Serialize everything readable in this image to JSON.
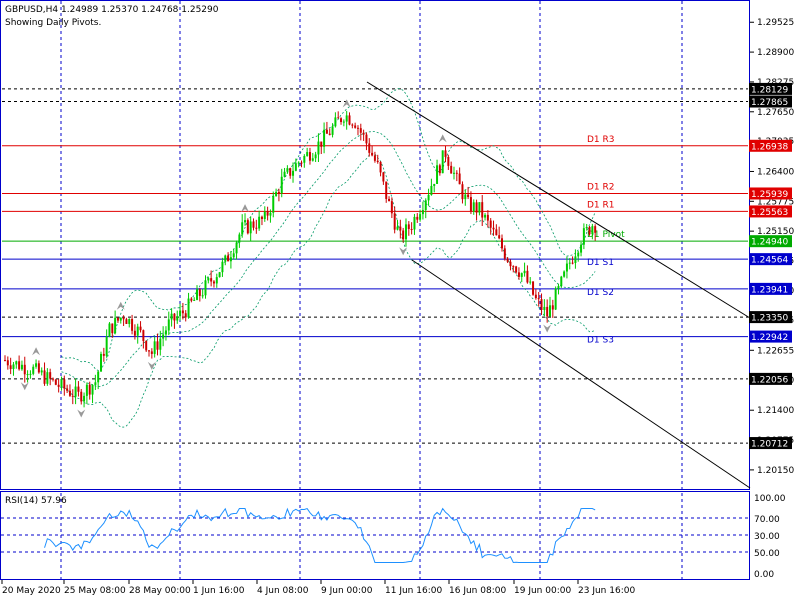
{
  "header": {
    "symbol_line": "GBPUSD,H4  1.24989 1.25370 1.24768 1.25290",
    "subtitle": "Showing Daily Pivots."
  },
  "rsi": {
    "label": "RSI(14) 57.96",
    "ticks": [
      "100.00",
      "70.00",
      "50.00",
      "30.00",
      "0.00"
    ]
  },
  "colors": {
    "background": "#ffffff",
    "frame": "#0000cc",
    "bull": "#00cc00",
    "bear": "#cc0000",
    "resistance": "#e00000",
    "support": "#0000cc",
    "pivot": "#00aa00",
    "black_line": "#000000",
    "band": "#009966",
    "rsi_line": "#1e90ff"
  },
  "chart_data": {
    "type": "line",
    "ylim": [
      1.1975,
      1.2997
    ],
    "price_ticks": [
      "1.29525",
      "1.28900",
      "1.28275",
      "1.27650",
      "1.27035",
      "1.26400",
      "1.25775",
      "1.25150",
      "1.24535",
      "1.23910",
      "1.23285",
      "1.22655",
      "1.22030",
      "1.21400",
      "1.20775",
      "1.20150"
    ],
    "x_labels": [
      "20 May 2020",
      "25 May 08:00",
      "28 May 00:00",
      "1 Jun 16:00",
      "4 Jun 08:00",
      "9 Jun 00:00",
      "11 Jun 16:00",
      "16 Jun 08:00",
      "19 Jun 00:00",
      "23 Jun 16:00"
    ],
    "levels": [
      {
        "value": 1.28129,
        "label": "1.28129",
        "style": "black",
        "name": ""
      },
      {
        "value": 1.27865,
        "label": "1.27865",
        "style": "black",
        "name": ""
      },
      {
        "value": 1.26938,
        "label": "1.26938",
        "style": "resistance",
        "name": "D1 R3"
      },
      {
        "value": 1.25939,
        "label": "1.25939",
        "style": "resistance",
        "name": "D1 R2"
      },
      {
        "value": 1.25563,
        "label": "1.25563",
        "style": "resistance",
        "name": "D1 R1"
      },
      {
        "value": 1.2494,
        "label": "1.24940",
        "style": "pivot",
        "name": "D1 Pivot"
      },
      {
        "value": 1.24564,
        "label": "1.24564",
        "style": "support",
        "name": "D1 S1"
      },
      {
        "value": 1.23941,
        "label": "1.23941",
        "style": "support",
        "name": "D1 S2"
      },
      {
        "value": 1.2335,
        "label": "1.23350",
        "style": "black",
        "name": ""
      },
      {
        "value": 1.22942,
        "label": "1.22942",
        "style": "support",
        "name": "D1 S3"
      },
      {
        "value": 1.22056,
        "label": "1.22056",
        "style": "black",
        "name": ""
      },
      {
        "value": 1.20712,
        "label": "1.20712",
        "style": "black",
        "name": ""
      }
    ],
    "close_path": [
      [
        0,
        1.2245
      ],
      [
        10,
        1.2225
      ],
      [
        18,
        1.2195
      ],
      [
        26,
        1.217
      ],
      [
        32,
        1.22
      ],
      [
        37,
        1.231
      ],
      [
        42,
        1.234
      ],
      [
        48,
        1.23
      ],
      [
        52,
        1.226
      ],
      [
        58,
        1.232
      ],
      [
        64,
        1.235
      ],
      [
        70,
        1.239
      ],
      [
        78,
        1.245
      ],
      [
        84,
        1.252
      ],
      [
        92,
        1.254
      ],
      [
        98,
        1.262
      ],
      [
        104,
        1.266
      ],
      [
        110,
        1.269
      ],
      [
        116,
        1.273
      ],
      [
        120,
        1.276
      ],
      [
        124,
        1.2745
      ],
      [
        128,
        1.27
      ],
      [
        132,
        1.265
      ],
      [
        136,
        1.257
      ],
      [
        140,
        1.25
      ],
      [
        144,
        1.253
      ],
      [
        150,
        1.26
      ],
      [
        156,
        1.268
      ],
      [
        160,
        1.262
      ],
      [
        164,
        1.257
      ],
      [
        168,
        1.256
      ],
      [
        172,
        1.252
      ],
      [
        178,
        1.246
      ],
      [
        184,
        1.242
      ],
      [
        188,
        1.237
      ],
      [
        192,
        1.234
      ],
      [
        196,
        1.239
      ],
      [
        200,
        1.245
      ],
      [
        204,
        1.25
      ],
      [
        208,
        1.2529
      ]
    ]
  }
}
